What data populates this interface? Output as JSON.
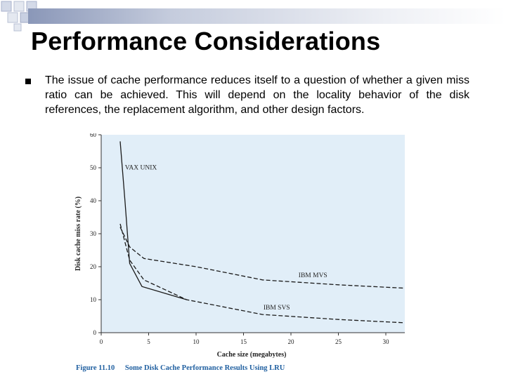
{
  "slide": {
    "title": "Performance Considerations",
    "bullet_text": "The issue of cache performance reduces itself to a question of whether a given miss ratio can be achieved. This will depend on the locality behavior of the disk references, the replacement algorithm, and other design factors."
  },
  "caption": {
    "figure_number": "Figure 11.10",
    "text": "Some Disk Cache Performance Results Using LRU"
  },
  "colors": {
    "plot_background": "#e1eef8",
    "caption_blue": "#1f5fa0",
    "title_bar": "#8a97b8"
  },
  "chart_data": {
    "type": "line",
    "title": "",
    "xlabel": "Cache size (megabytes)",
    "ylabel": "Disk cache miss rate (%)",
    "xlim": [
      0,
      32
    ],
    "ylim": [
      0,
      60
    ],
    "xticks": [
      0,
      5,
      10,
      15,
      20,
      25,
      30
    ],
    "yticks": [
      0,
      10,
      20,
      30,
      40,
      50,
      60
    ],
    "grid": false,
    "series": [
      {
        "name": "VAX UNIX",
        "style": "solid",
        "x": [
          2,
          2.5,
          3,
          4.3,
          9
        ],
        "y": [
          58,
          40,
          21,
          14,
          10
        ]
      },
      {
        "name": "IBM MVS",
        "style": "dashed",
        "x": [
          2,
          3,
          4.5,
          10,
          17,
          25,
          32
        ],
        "y": [
          32,
          26,
          22.5,
          20,
          16,
          14.5,
          13.5
        ]
      },
      {
        "name": "IBM SVS",
        "style": "dashed",
        "x": [
          2,
          3,
          4.5,
          9,
          17,
          25,
          32
        ],
        "y": [
          33,
          22,
          16,
          10,
          5.5,
          4,
          3
        ]
      }
    ],
    "annotations": [
      {
        "text": "VAX UNIX",
        "x": 2.5,
        "y": 49.5
      },
      {
        "text": "IBM MVS",
        "x": 20.8,
        "y": 16.8
      },
      {
        "text": "IBM SVS",
        "x": 17.1,
        "y": 7
      }
    ]
  }
}
